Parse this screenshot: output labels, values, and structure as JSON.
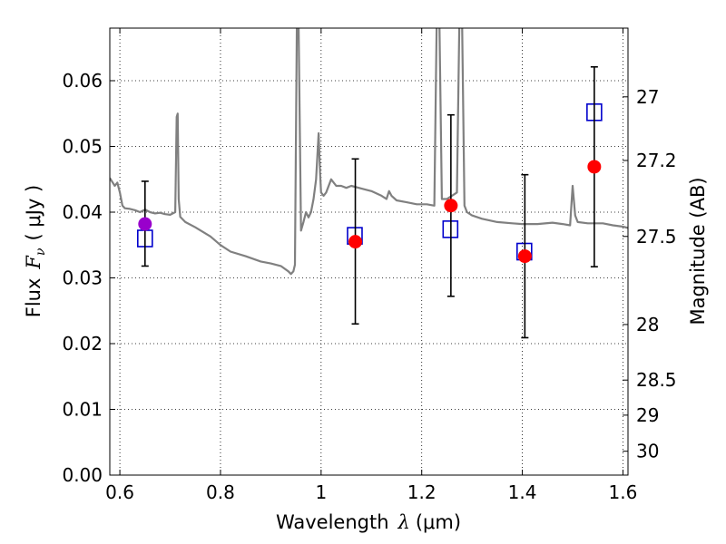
{
  "chart_data": {
    "type": "scatter",
    "title": "",
    "xlabel": "Wavelength",
    "xlabel_symbol": "λ",
    "xlabel_unit": "(μm)",
    "ylabel": "Flux",
    "ylabel_symbol": "F",
    "ylabel_subscript": "ν",
    "ylabel_unit": "( μJy )",
    "y2label": "Magnitude (AB)",
    "xlim": [
      0.58,
      1.61
    ],
    "ylim": [
      0.0,
      0.068
    ],
    "xticks": [
      0.6,
      0.8,
      1.0,
      1.2,
      1.4,
      1.6
    ],
    "xtick_labels": [
      "0.6",
      "0.8",
      "1",
      "1.2",
      "1.4",
      "1.6"
    ],
    "yticks": [
      0.0,
      0.01,
      0.02,
      0.03,
      0.04,
      0.05,
      0.06
    ],
    "ytick_labels": [
      "0.00",
      "0.01",
      "0.02",
      "0.03",
      "0.04",
      "0.05",
      "0.06"
    ],
    "y2ticks": [
      27.0,
      27.2,
      27.5,
      28.0,
      28.5,
      29.0,
      30.0
    ],
    "y2tick_labels": [
      "27",
      "27.2",
      "27.5",
      "28",
      "28.5",
      "29",
      "30"
    ],
    "grid": true,
    "legend": "none",
    "colors": {
      "template": "#808080",
      "model_squares": "#0000cc",
      "observed": "#ff0000",
      "observed_first": "#9900cc",
      "errorbar": "#000000"
    },
    "series": [
      {
        "kind": "line",
        "x": [
          0.58,
          0.59,
          0.595,
          0.6,
          0.605,
          0.61,
          0.62,
          0.63,
          0.64,
          0.65,
          0.66,
          0.67,
          0.68,
          0.69,
          0.7,
          0.71,
          0.713,
          0.715,
          0.717,
          0.72,
          0.73,
          0.75,
          0.78,
          0.8,
          0.82,
          0.85,
          0.88,
          0.9,
          0.92,
          0.935,
          0.94,
          0.945,
          0.948,
          0.952,
          0.955,
          0.96,
          0.965,
          0.97,
          0.975,
          0.98,
          0.985,
          0.99,
          0.995,
          0.998,
          1.0,
          1.005,
          1.01,
          1.02,
          1.03,
          1.04,
          1.05,
          1.06,
          1.08,
          1.1,
          1.12,
          1.13,
          1.135,
          1.14,
          1.15,
          1.17,
          1.19,
          1.21,
          1.225,
          1.23,
          1.235,
          1.24,
          1.25,
          1.26,
          1.27,
          1.275,
          1.28,
          1.285,
          1.29,
          1.3,
          1.32,
          1.35,
          1.38,
          1.4,
          1.43,
          1.46,
          1.48,
          1.495,
          1.5,
          1.505,
          1.51,
          1.53,
          1.56,
          1.58,
          1.6,
          1.61
        ],
        "y": [
          0.0452,
          0.044,
          0.0445,
          0.043,
          0.041,
          0.0406,
          0.0405,
          0.0403,
          0.04,
          0.0404,
          0.04,
          0.0398,
          0.0399,
          0.0397,
          0.0396,
          0.04,
          0.0545,
          0.055,
          0.042,
          0.0393,
          0.0385,
          0.0377,
          0.0363,
          0.035,
          0.034,
          0.0333,
          0.0325,
          0.0322,
          0.0318,
          0.031,
          0.0306,
          0.031,
          0.032,
          0.07,
          0.07,
          0.0372,
          0.0385,
          0.04,
          0.0392,
          0.04,
          0.042,
          0.045,
          0.052,
          0.046,
          0.043,
          0.0425,
          0.043,
          0.045,
          0.044,
          0.044,
          0.0437,
          0.044,
          0.0436,
          0.0432,
          0.0425,
          0.042,
          0.0432,
          0.0425,
          0.0418,
          0.0415,
          0.0412,
          0.0412,
          0.041,
          0.07,
          0.07,
          0.042,
          0.042,
          0.0425,
          0.043,
          0.07,
          0.07,
          0.041,
          0.04,
          0.0395,
          0.039,
          0.0385,
          0.0383,
          0.0382,
          0.0382,
          0.0384,
          0.0382,
          0.038,
          0.044,
          0.0395,
          0.0385,
          0.0383,
          0.0383,
          0.038,
          0.0378,
          0.0376
        ]
      },
      {
        "kind": "points",
        "marker": "open-square",
        "points": [
          {
            "x": 0.65,
            "y": 0.036
          },
          {
            "x": 1.067,
            "y": 0.0364
          },
          {
            "x": 1.257,
            "y": 0.0374
          },
          {
            "x": 1.404,
            "y": 0.034
          },
          {
            "x": 1.543,
            "y": 0.0552
          }
        ]
      },
      {
        "kind": "points",
        "marker": "filled-circle",
        "points": [
          {
            "x": 0.65,
            "y": 0.0382,
            "err": [
              0.0318,
              0.0447
            ],
            "first": true
          },
          {
            "x": 1.068,
            "y": 0.0355,
            "err": [
              0.023,
              0.0481
            ]
          },
          {
            "x": 1.258,
            "y": 0.041,
            "err": [
              0.0272,
              0.0548
            ]
          },
          {
            "x": 1.405,
            "y": 0.0333,
            "err": [
              0.0209,
              0.0457
            ]
          },
          {
            "x": 1.543,
            "y": 0.0469,
            "err": [
              0.0317,
              0.0621
            ]
          }
        ]
      }
    ]
  }
}
